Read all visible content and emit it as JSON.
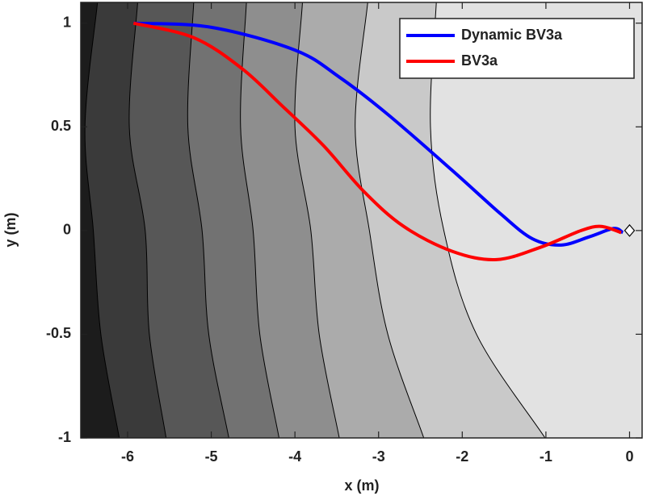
{
  "chart_data": {
    "type": "line",
    "xlabel": "x (m)",
    "ylabel": "y (m)",
    "xlim": [
      -6.56,
      0.15
    ],
    "ylim": [
      -1,
      1.1
    ],
    "xticks": [
      -6,
      -5,
      -4,
      -3,
      -2,
      -1,
      0
    ],
    "yticks": [
      -1,
      -0.5,
      0,
      0.5,
      1
    ],
    "legend": "upper right",
    "contour_y": [
      1.1,
      0.5,
      0,
      -0.5,
      -1
    ],
    "contour_lines": [
      [
        -6.36,
        -6.51,
        -6.41,
        -6.32,
        -6.1
      ],
      [
        -5.88,
        -5.98,
        -5.79,
        -5.74,
        -5.54
      ],
      [
        -5.21,
        -5.28,
        -5.11,
        -5.03,
        -4.79
      ],
      [
        -4.58,
        -4.65,
        -4.5,
        -4.42,
        -4.19
      ],
      [
        -3.91,
        -4.0,
        -3.81,
        -3.71,
        -3.47
      ],
      [
        -3.13,
        -3.28,
        -3.11,
        -2.89,
        -2.46
      ],
      [
        -2.31,
        -2.38,
        -2.22,
        -1.83,
        -1.01
      ]
    ],
    "contour_fills": [
      "#1c1c1c",
      "#3a3a3a",
      "#575757",
      "#727272",
      "#8e8e8e",
      "#ababab",
      "#c9c9c9",
      "#e2e2e2",
      "#ffffff"
    ],
    "series": [
      {
        "name": "Dynamic BV3a",
        "color": "#0000ff",
        "x": [
          -5.93,
          -5.0,
          -4.0,
          -3.47,
          -2.89,
          -2.12,
          -1.54,
          -1.16,
          -0.82,
          -0.48,
          -0.19,
          -0.08
        ],
        "values": [
          1.0,
          0.98,
          0.87,
          0.74,
          0.56,
          0.29,
          0.08,
          -0.04,
          -0.07,
          -0.03,
          0.01,
          -0.01
        ]
      },
      {
        "name": "BV3a",
        "color": "#ff0000",
        "x": [
          -5.93,
          -5.21,
          -4.63,
          -4.15,
          -3.66,
          -3.18,
          -2.7,
          -2.12,
          -1.59,
          -1.06,
          -0.58,
          -0.34,
          -0.1
        ],
        "values": [
          1.0,
          0.93,
          0.78,
          0.6,
          0.41,
          0.19,
          0.02,
          -0.1,
          -0.14,
          -0.08,
          0.0,
          0.02,
          -0.01
        ]
      }
    ],
    "target": {
      "x": 0,
      "y": 0
    }
  }
}
